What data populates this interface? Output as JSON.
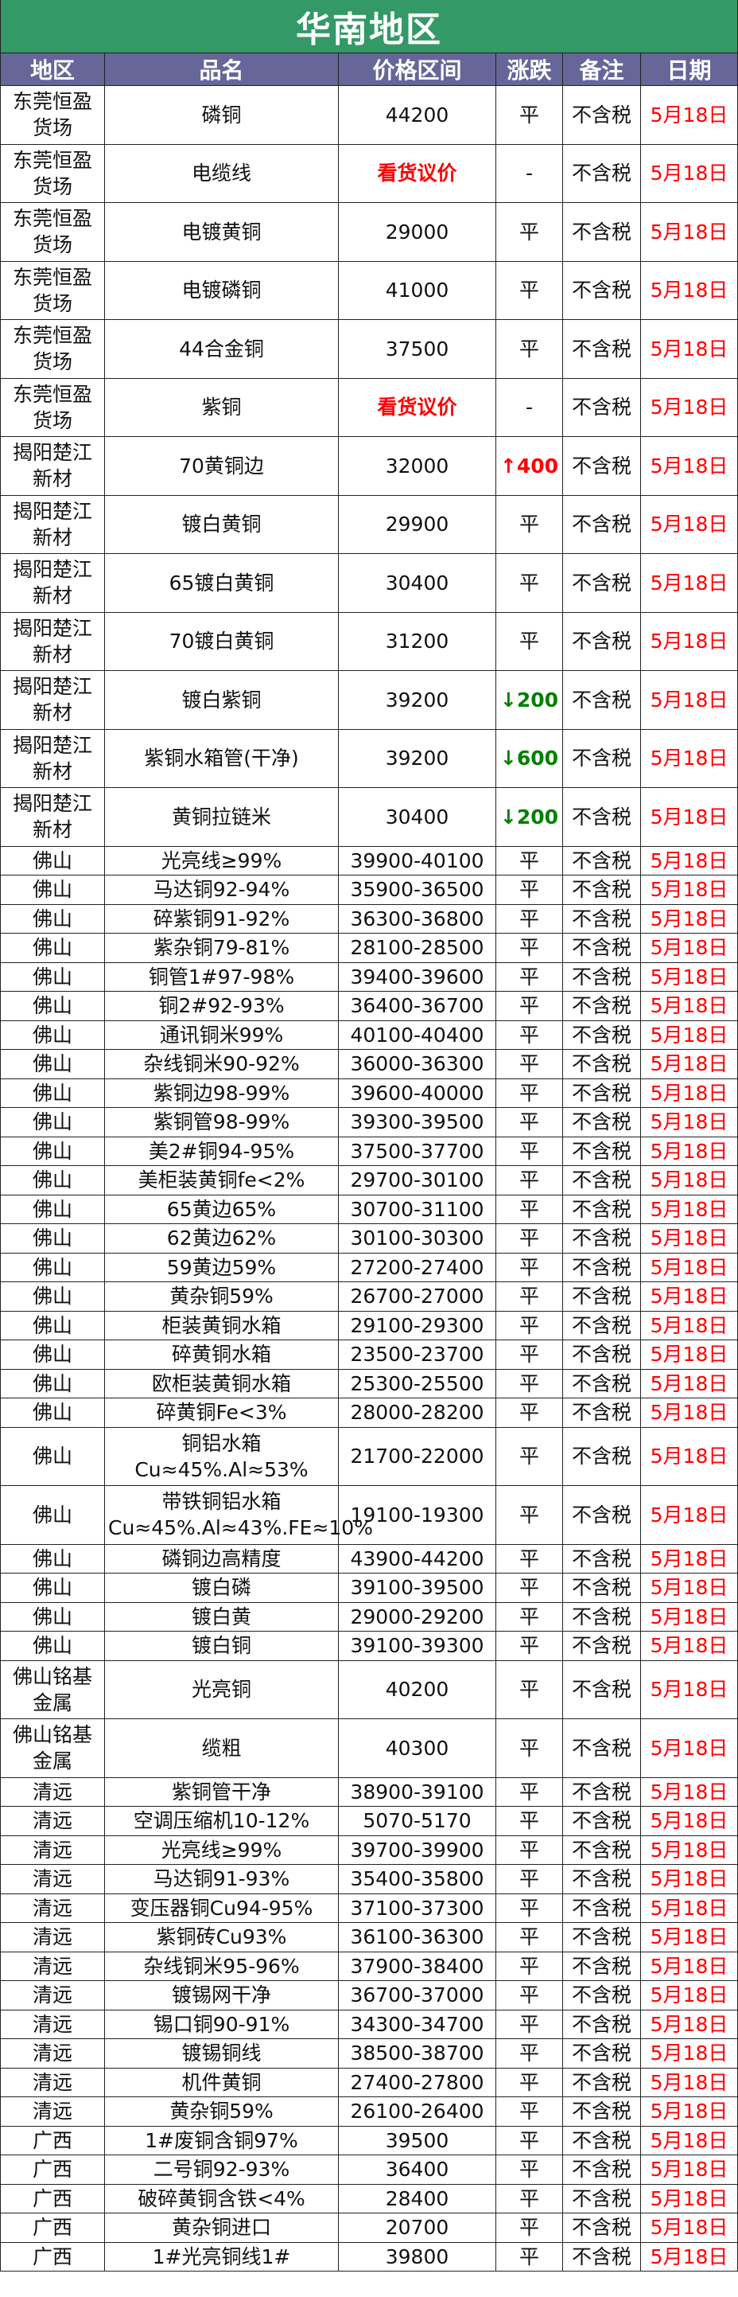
{
  "title": "华南地区",
  "colors": {
    "title_bg": "#339966",
    "header_bg": "#666699",
    "date": "#ff0000",
    "up": "#ff0000",
    "down": "#008000"
  },
  "headers": [
    "地区",
    "品名",
    "价格区间",
    "涨跌",
    "备注",
    "日期"
  ],
  "rows": [
    {
      "region": "东莞恒盈货场",
      "name": "磷铜",
      "price": "44200",
      "change": "平",
      "note": "不含税",
      "date": "5月18日"
    },
    {
      "region": "东莞恒盈货场",
      "name": "电缆线",
      "price": "看货议价",
      "change": "-",
      "note": "不含税",
      "date": "5月18日"
    },
    {
      "region": "东莞恒盈货场",
      "name": "电镀黄铜",
      "price": "29000",
      "change": "平",
      "note": "不含税",
      "date": "5月18日"
    },
    {
      "region": "东莞恒盈货场",
      "name": "电镀磷铜",
      "price": "41000",
      "change": "平",
      "note": "不含税",
      "date": "5月18日"
    },
    {
      "region": "东莞恒盈货场",
      "name": "44合金铜",
      "price": "37500",
      "change": "平",
      "note": "不含税",
      "date": "5月18日"
    },
    {
      "region": "东莞恒盈货场",
      "name": "紫铜",
      "price": "看货议价",
      "change": "-",
      "note": "不含税",
      "date": "5月18日"
    },
    {
      "region": "揭阳楚江新材",
      "name": "70黄铜边",
      "price": "32000",
      "change": "↑400",
      "note": "不含税",
      "date": "5月18日"
    },
    {
      "region": "揭阳楚江新材",
      "name": "镀白黄铜",
      "price": "29900",
      "change": "平",
      "note": "不含税",
      "date": "5月18日"
    },
    {
      "region": "揭阳楚江新材",
      "name": "65镀白黄铜",
      "price": "30400",
      "change": "平",
      "note": "不含税",
      "date": "5月18日"
    },
    {
      "region": "揭阳楚江新材",
      "name": "70镀白黄铜",
      "price": "31200",
      "change": "平",
      "note": "不含税",
      "date": "5月18日"
    },
    {
      "region": "揭阳楚江新材",
      "name": "镀白紫铜",
      "price": "39200",
      "change": "↓200",
      "note": "不含税",
      "date": "5月18日"
    },
    {
      "region": "揭阳楚江新材",
      "name": "紫铜水箱管(干净)",
      "price": "39200",
      "change": "↓600",
      "note": "不含税",
      "date": "5月18日"
    },
    {
      "region": "揭阳楚江新材",
      "name": "黄铜拉链米",
      "price": "30400",
      "change": "↓200",
      "note": "不含税",
      "date": "5月18日"
    },
    {
      "region": "佛山",
      "name": "光亮线≥99%",
      "price": "39900-40100",
      "change": "平",
      "note": "不含税",
      "date": "5月18日"
    },
    {
      "region": "佛山",
      "name": "马达铜92-94%",
      "price": "35900-36500",
      "change": "平",
      "note": "不含税",
      "date": "5月18日"
    },
    {
      "region": "佛山",
      "name": "碎紫铜91-92%",
      "price": "36300-36800",
      "change": "平",
      "note": "不含税",
      "date": "5月18日"
    },
    {
      "region": "佛山",
      "name": "紫杂铜79-81%",
      "price": "28100-28500",
      "change": "平",
      "note": "不含税",
      "date": "5月18日"
    },
    {
      "region": "佛山",
      "name": "铜管1#97-98%",
      "price": "39400-39600",
      "change": "平",
      "note": "不含税",
      "date": "5月18日"
    },
    {
      "region": "佛山",
      "name": "铜2#92-93%",
      "price": "36400-36700",
      "change": "平",
      "note": "不含税",
      "date": "5月18日"
    },
    {
      "region": "佛山",
      "name": "通讯铜米99%",
      "price": "40100-40400",
      "change": "平",
      "note": "不含税",
      "date": "5月18日"
    },
    {
      "region": "佛山",
      "name": "杂线铜米90-92%",
      "price": "36000-36300",
      "change": "平",
      "note": "不含税",
      "date": "5月18日"
    },
    {
      "region": "佛山",
      "name": "紫铜边98-99%",
      "price": "39600-40000",
      "change": "平",
      "note": "不含税",
      "date": "5月18日"
    },
    {
      "region": "佛山",
      "name": "紫铜管98-99%",
      "price": "39300-39500",
      "change": "平",
      "note": "不含税",
      "date": "5月18日"
    },
    {
      "region": "佛山",
      "name": "美2#铜94-95%",
      "price": "37500-37700",
      "change": "平",
      "note": "不含税",
      "date": "5月18日"
    },
    {
      "region": "佛山",
      "name": "美柜装黄铜fe<2%",
      "price": "29700-30100",
      "change": "平",
      "note": "不含税",
      "date": "5月18日"
    },
    {
      "region": "佛山",
      "name": "65黄边65%",
      "price": "30700-31100",
      "change": "平",
      "note": "不含税",
      "date": "5月18日"
    },
    {
      "region": "佛山",
      "name": "62黄边62%",
      "price": "30100-30300",
      "change": "平",
      "note": "不含税",
      "date": "5月18日"
    },
    {
      "region": "佛山",
      "name": "59黄边59%",
      "price": "27200-27400",
      "change": "平",
      "note": "不含税",
      "date": "5月18日"
    },
    {
      "region": "佛山",
      "name": "黄杂铜59%",
      "price": "26700-27000",
      "change": "平",
      "note": "不含税",
      "date": "5月18日"
    },
    {
      "region": "佛山",
      "name": "柜装黄铜水箱",
      "price": "29100-29300",
      "change": "平",
      "note": "不含税",
      "date": "5月18日"
    },
    {
      "region": "佛山",
      "name": "碎黄铜水箱",
      "price": "23500-23700",
      "change": "平",
      "note": "不含税",
      "date": "5月18日"
    },
    {
      "region": "佛山",
      "name": "欧柜装黄铜水箱",
      "price": "25300-25500",
      "change": "平",
      "note": "不含税",
      "date": "5月18日"
    },
    {
      "region": "佛山",
      "name": "碎黄铜Fe<3%",
      "price": "28000-28200",
      "change": "平",
      "note": "不含税",
      "date": "5月18日"
    },
    {
      "region": "佛山",
      "name": "铜铝水箱Cu≈45%.Al≈53%",
      "price": "21700-22000",
      "change": "平",
      "note": "不含税",
      "date": "5月18日",
      "tall": true
    },
    {
      "region": "佛山",
      "name": "带铁铜铝水箱Cu≈45%.Al≈43%.FE≈10%",
      "price": "19100-19300",
      "change": "平",
      "note": "不含税",
      "date": "5月18日",
      "tall": true
    },
    {
      "region": "佛山",
      "name": "磷铜边高精度",
      "price": "43900-44200",
      "change": "平",
      "note": "不含税",
      "date": "5月18日"
    },
    {
      "region": "佛山",
      "name": "镀白磷",
      "price": "39100-39500",
      "change": "平",
      "note": "不含税",
      "date": "5月18日"
    },
    {
      "region": "佛山",
      "name": "镀白黄",
      "price": "29000-29200",
      "change": "平",
      "note": "不含税",
      "date": "5月18日"
    },
    {
      "region": "佛山",
      "name": "镀白铜",
      "price": "39100-39300",
      "change": "平",
      "note": "不含税",
      "date": "5月18日"
    },
    {
      "region": "佛山铭基金属",
      "name": "光亮铜",
      "price": "40200",
      "change": "平",
      "note": "不含税",
      "date": "5月18日"
    },
    {
      "region": "佛山铭基金属",
      "name": "缆粗",
      "price": "40300",
      "change": "平",
      "note": "不含税",
      "date": "5月18日"
    },
    {
      "region": "清远",
      "name": "紫铜管干净",
      "price": "38900-39100",
      "change": "平",
      "note": "不含税",
      "date": "5月18日"
    },
    {
      "region": "清远",
      "name": "空调压缩机10-12%",
      "price": "5070-5170",
      "change": "平",
      "note": "不含税",
      "date": "5月18日"
    },
    {
      "region": "清远",
      "name": "光亮线≥99%",
      "price": "39700-39900",
      "change": "平",
      "note": "不含税",
      "date": "5月18日"
    },
    {
      "region": "清远",
      "name": "马达铜91-93%",
      "price": "35400-35800",
      "change": "平",
      "note": "不含税",
      "date": "5月18日"
    },
    {
      "region": "清远",
      "name": "变压器铜Cu94-95%",
      "price": "37100-37300",
      "change": "平",
      "note": "不含税",
      "date": "5月18日"
    },
    {
      "region": "清远",
      "name": "紫铜砖Cu93%",
      "price": "36100-36300",
      "change": "平",
      "note": "不含税",
      "date": "5月18日"
    },
    {
      "region": "清远",
      "name": "杂线铜米95-96%",
      "price": "37900-38400",
      "change": "平",
      "note": "不含税",
      "date": "5月18日"
    },
    {
      "region": "清远",
      "name": "镀锡网干净",
      "price": "36700-37000",
      "change": "平",
      "note": "不含税",
      "date": "5月18日"
    },
    {
      "region": "清远",
      "name": "锡口铜90-91%",
      "price": "34300-34700",
      "change": "平",
      "note": "不含税",
      "date": "5月18日"
    },
    {
      "region": "清远",
      "name": "镀锡铜线",
      "price": "38500-38700",
      "change": "平",
      "note": "不含税",
      "date": "5月18日"
    },
    {
      "region": "清远",
      "name": "机件黄铜",
      "price": "27400-27800",
      "change": "平",
      "note": "不含税",
      "date": "5月18日"
    },
    {
      "region": "清远",
      "name": "黄杂铜59%",
      "price": "26100-26400",
      "change": "平",
      "note": "不含税",
      "date": "5月18日"
    },
    {
      "region": "广西",
      "name": "1#废铜含铜97%",
      "price": "39500",
      "change": "平",
      "note": "不含税",
      "date": "5月18日"
    },
    {
      "region": "广西",
      "name": "二号铜92-93%",
      "price": "36400",
      "change": "平",
      "note": "不含税",
      "date": "5月18日"
    },
    {
      "region": "广西",
      "name": "破碎黄铜含铁<4%",
      "price": "28400",
      "change": "平",
      "note": "不含税",
      "date": "5月18日"
    },
    {
      "region": "广西",
      "name": "黄杂铜进口",
      "price": "20700",
      "change": "平",
      "note": "不含税",
      "date": "5月18日"
    },
    {
      "region": "广西",
      "name": "1#光亮铜线1#",
      "price": "39800",
      "change": "平",
      "note": "不含税",
      "date": "5月18日"
    }
  ]
}
